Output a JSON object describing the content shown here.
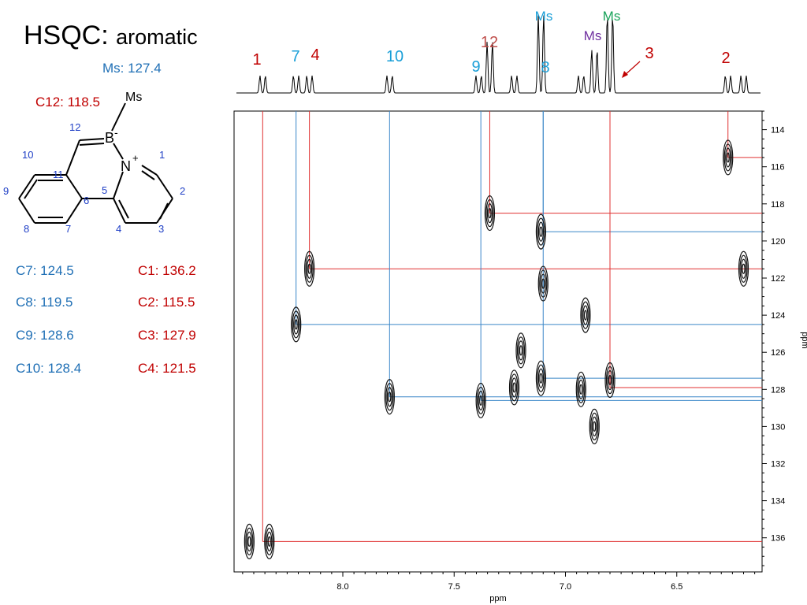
{
  "slide": {
    "title_main": "HSQC:",
    "title_sub": "aromatic",
    "ms_shift": "Ms: 127.4",
    "c12_shift": "C12: 118.5",
    "shifts_left": [
      "C7: 124.5",
      "C8: 119.5",
      "C9: 128.6",
      "C10: 128.4"
    ],
    "shifts_right": [
      "C1: 136.2",
      "C2: 115.5",
      "C3: 127.9",
      "C4: 121.5"
    ],
    "colors": {
      "blue": "#1f6fb5",
      "red": "#c00000",
      "cyan": "#1a9fd8",
      "green": "#19a35a",
      "purple": "#7030a0",
      "salmon": "#c0504d"
    }
  },
  "molecule": {
    "atom_b": "B",
    "atom_n": "N",
    "charge_minus": "-",
    "charge_plus": "+",
    "substituent": "Ms",
    "numbers": [
      "12",
      "1",
      "10",
      "11",
      "5",
      "9",
      "2",
      "6",
      "8",
      "7",
      "4",
      "3"
    ]
  },
  "spectrum_labels": [
    {
      "text": "1",
      "color": "red"
    },
    {
      "text": "7",
      "color": "cyan"
    },
    {
      "text": "4",
      "color": "red"
    },
    {
      "text": "10",
      "color": "cyan"
    },
    {
      "text": "9",
      "color": "cyan"
    },
    {
      "text": "12",
      "color": "salmon"
    },
    {
      "text": "Ms",
      "color": "cyan"
    },
    {
      "text": "8",
      "color": "cyan"
    },
    {
      "text": "Ms",
      "color": "purple"
    },
    {
      "text": "Ms",
      "color": "green"
    },
    {
      "text": "3",
      "color": "red"
    },
    {
      "text": "2",
      "color": "red"
    }
  ],
  "chart_data": {
    "type": "scatter",
    "title": "",
    "xlabel": "ppm",
    "ylabel": "ppm",
    "xlim": [
      8.5,
      6.15
    ],
    "ylim": [
      113,
      137.5
    ],
    "x_ticks": [
      "8.0",
      "7.5",
      "7.0",
      "6.5"
    ],
    "y_ticks": [
      "114",
      "116",
      "118",
      "120",
      "122",
      "124",
      "126",
      "128",
      "130",
      "132",
      "134",
      "136"
    ],
    "cross_peaks": [
      {
        "x": 8.42,
        "y": 136.2
      },
      {
        "x": 8.33,
        "y": 136.2
      },
      {
        "x": 8.15,
        "y": 121.5
      },
      {
        "x": 8.21,
        "y": 124.5
      },
      {
        "x": 7.79,
        "y": 128.4
      },
      {
        "x": 7.38,
        "y": 128.6
      },
      {
        "x": 7.34,
        "y": 118.5
      },
      {
        "x": 7.11,
        "y": 119.5
      },
      {
        "x": 7.1,
        "y": 122.3
      },
      {
        "x": 7.11,
        "y": 127.4
      },
      {
        "x": 7.2,
        "y": 125.9
      },
      {
        "x": 7.23,
        "y": 127.9
      },
      {
        "x": 6.91,
        "y": 124.0
      },
      {
        "x": 6.93,
        "y": 128.0
      },
      {
        "x": 6.87,
        "y": 130.0
      },
      {
        "x": 6.8,
        "y": 127.5
      },
      {
        "x": 6.27,
        "y": 115.5
      },
      {
        "x": 6.2,
        "y": 121.5
      }
    ],
    "assignments": [
      {
        "label": "1",
        "h": 8.36,
        "c": 136.2,
        "color": "red"
      },
      {
        "label": "7",
        "h": 8.21,
        "c": 124.5,
        "color": "blue"
      },
      {
        "label": "4",
        "h": 8.15,
        "c": 121.5,
        "color": "red"
      },
      {
        "label": "10",
        "h": 7.79,
        "c": 128.4,
        "color": "blue"
      },
      {
        "label": "9",
        "h": 7.38,
        "c": 128.6,
        "color": "blue"
      },
      {
        "label": "12",
        "h": 7.34,
        "c": 118.5,
        "color": "red"
      },
      {
        "label": "8",
        "h": 7.1,
        "c": 119.5,
        "color": "blue"
      },
      {
        "label": "Ms",
        "h": 7.1,
        "c": 127.4,
        "color": "blue"
      },
      {
        "label": "3",
        "h": 6.8,
        "c": 127.9,
        "color": "red"
      },
      {
        "label": "2",
        "h": 6.27,
        "c": 115.5,
        "color": "red"
      }
    ],
    "proton_peaks": [
      8.36,
      8.21,
      8.15,
      7.79,
      7.39,
      7.34,
      7.23,
      7.11,
      6.93,
      6.87,
      6.8,
      6.27,
      6.2
    ]
  }
}
